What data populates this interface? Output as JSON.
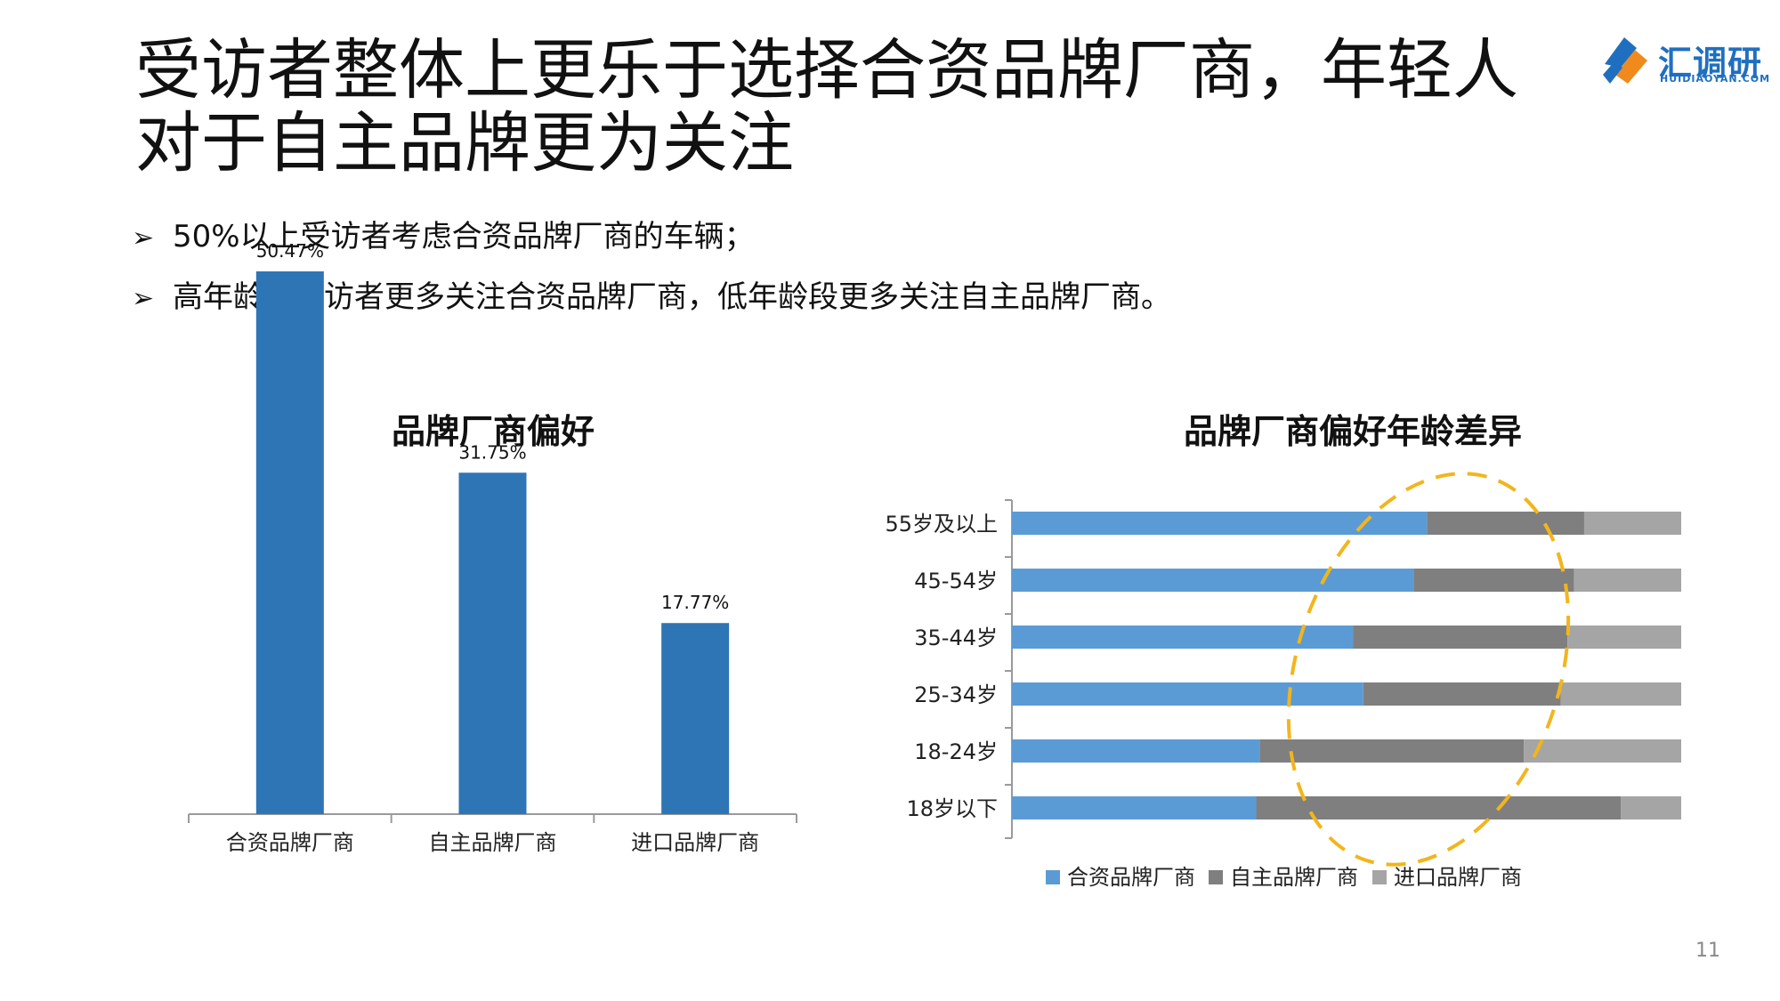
{
  "slide": {
    "title_line1": "受访者整体上更乐于选择合资品牌厂商，年轻人",
    "title_line2": "对于自主品牌更为关注",
    "bullet_marker": "➢",
    "bullets": [
      "50%以上受访者考虑合资品牌厂商的车辆；",
      "高年龄段受访者更多关注合资品牌厂商，低年龄段更多关注自主品牌厂商。"
    ],
    "page_number": "11"
  },
  "logo": {
    "text": "汇调研",
    "subtext": "HUIDIAOYAN.COM",
    "colors": {
      "blue": "#1f6fc0",
      "orange": "#f08a1c"
    }
  },
  "colors": {
    "bar_blue": "#2e75b6",
    "series_blue": "#5b9bd5",
    "series_dark_gray": "#7f7f7f",
    "series_light_gray": "#a5a5a5",
    "ellipse": "#f2b51c",
    "axis": "#9a9a9a"
  },
  "chart_data": [
    {
      "type": "bar",
      "title": "品牌厂商偏好",
      "categories": [
        "合资品牌厂商",
        "自主品牌厂商",
        "进口品牌厂商"
      ],
      "values": [
        50.47,
        31.75,
        17.77
      ],
      "data_labels": [
        "50.47%",
        "31.75%",
        "17.77%"
      ],
      "ylim": [
        0,
        60
      ],
      "grid": false
    },
    {
      "type": "bar",
      "orientation": "horizontal",
      "stacked": "percent",
      "title": "品牌厂商偏好年龄差异",
      "categories": [
        "55岁及以上",
        "45-54岁",
        "35-44岁",
        "25-34岁",
        "18-24岁",
        "18岁以下"
      ],
      "series": [
        {
          "name": "合资品牌厂商",
          "values": [
            62,
            60,
            51,
            52.5,
            37,
            36.5
          ]
        },
        {
          "name": "自主品牌厂商",
          "values": [
            23.5,
            24,
            32,
            29.5,
            39.5,
            54.5
          ]
        },
        {
          "name": "进口品牌厂商",
          "values": [
            14.5,
            16,
            17,
            18,
            23.5,
            9
          ]
        }
      ],
      "xlim": [
        0,
        100
      ],
      "grid": false,
      "legend_position": "bottom",
      "annotation": "dashed-ellipse"
    }
  ]
}
